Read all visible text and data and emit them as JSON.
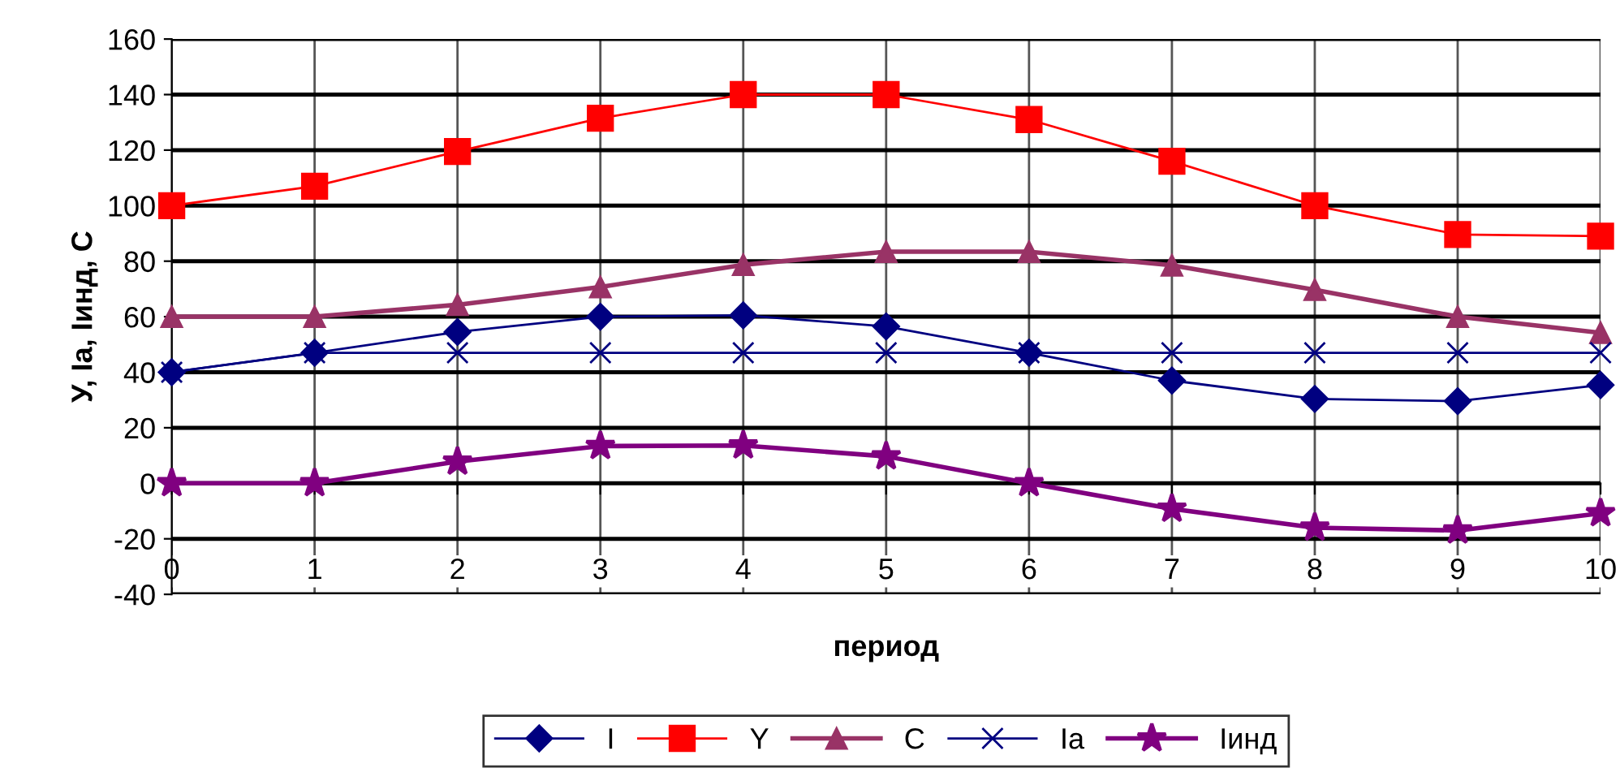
{
  "chart_data": {
    "type": "line",
    "xlabel": "период",
    "ylabel": "У, Iа, Iинд, С",
    "x": [
      0,
      1,
      2,
      3,
      4,
      5,
      6,
      7,
      8,
      9,
      10
    ],
    "xlim": [
      0,
      10
    ],
    "xticks": [
      0,
      1,
      2,
      3,
      4,
      5,
      6,
      7,
      8,
      9,
      10
    ],
    "ylim": [
      -40,
      160
    ],
    "yticks": [
      -40,
      -20,
      0,
      20,
      40,
      60,
      80,
      100,
      120,
      140,
      160
    ],
    "grid": true,
    "legend": "bottom",
    "line_style": "solid",
    "series": [
      {
        "name": "I",
        "color": "#000080",
        "marker": "diamond",
        "values": [
          40,
          47,
          54.5,
          60,
          60.5,
          56.5,
          47,
          37,
          30.4,
          29.6,
          35.4
        ]
      },
      {
        "name": "Y",
        "color": "#ff0000",
        "marker": "square",
        "values": [
          100,
          107,
          119.5,
          131.5,
          140,
          140,
          131,
          116,
          100,
          89.6,
          89
        ]
      },
      {
        "name": "C",
        "color": "#993366",
        "marker": "triangle",
        "values": [
          60,
          60,
          64.3,
          70.7,
          78.7,
          83.4,
          83.4,
          78.5,
          69.7,
          60,
          54.2
        ]
      },
      {
        "name": "Ia",
        "color": "#000080",
        "marker": "cross",
        "values": [
          40,
          47,
          47,
          47,
          47,
          47,
          47,
          47,
          47,
          47,
          47
        ]
      },
      {
        "name": "Iинд",
        "color": "#800080",
        "marker": "star",
        "values": [
          0,
          0,
          7.8,
          13.4,
          13.6,
          9.7,
          0,
          -9.2,
          -16,
          -17,
          -10.8
        ]
      }
    ]
  }
}
